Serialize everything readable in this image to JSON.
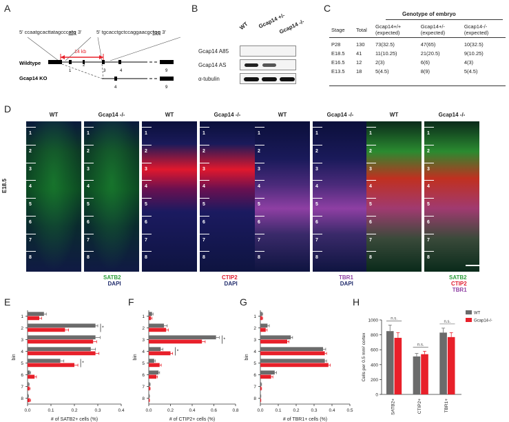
{
  "panels": {
    "A": "A",
    "B": "B",
    "C": "C",
    "D": "D",
    "E": "E",
    "F": "F",
    "G": "G",
    "H": "H"
  },
  "panelA": {
    "seq_left": "5' ccaatgcacttatagccc",
    "seq_left_ul": "atg",
    "seq_left_end": " 3'",
    "seq_right": "5' tgcacctgctccaggaacgc",
    "seq_right_ul": "tgg",
    "seq_right_end": " 3'",
    "kb": "14 kb",
    "wildtype": "Wildtype",
    "ko": "Gcap14 KO",
    "exons_wt": [
      "1",
      "2",
      "3",
      "4",
      "9"
    ],
    "exons_ko": [
      "4",
      "9"
    ]
  },
  "panelB": {
    "lanes": [
      "WT",
      "Gcap14 +/-",
      "Gcap14 -/-"
    ],
    "rows": [
      "Gcap14 A85",
      "Gcap14 AS",
      "α-tubulin"
    ]
  },
  "panelC": {
    "title": "Genotype of embryo",
    "headers": [
      "Stage",
      "Total",
      "Gcap14+/+\n(expected)",
      "Gcap14+/-\n(expected)",
      "Gcap14-/-\n(expected)"
    ],
    "rows": [
      [
        "P28",
        "130",
        "73(32.5)",
        "47(65)",
        "10(32.5)"
      ],
      [
        "E18.5",
        "41",
        "11(10.25)",
        "21(20.5)",
        "9(10.25)"
      ],
      [
        "E16.5",
        "12",
        "2(3)",
        "6(6)",
        "4(3)"
      ],
      [
        "E13.5",
        "18",
        "5(4.5)",
        "8(9)",
        "5(4.5)"
      ]
    ]
  },
  "panelD": {
    "stage": "E18.5",
    "wt": "WT",
    "ko": "Gcap14 -/-",
    "bins": [
      "1",
      "2",
      "3",
      "4",
      "5",
      "6",
      "7",
      "8"
    ],
    "captions": [
      [
        "SATB2",
        "DAPI"
      ],
      [
        "CTIP2",
        "DAPI"
      ],
      [
        "TBR1",
        "DAPI"
      ],
      [
        "SATB2",
        "CTIP2",
        "TBR1"
      ]
    ],
    "colors": {
      "satb2": "#2ecc40",
      "ctip2": "#e0182d",
      "tbr1": "#8e3fa3",
      "dapi": "#1f2a6b"
    }
  },
  "chart_data": [
    {
      "type": "bar",
      "orientation": "horizontal",
      "title": "",
      "xlabel": "# of SATB2+ cells (%)",
      "ylabel": "bin",
      "categories": [
        "1",
        "2",
        "3",
        "4",
        "5",
        "6",
        "7",
        "8"
      ],
      "xlim": [
        0,
        0.4
      ],
      "xticks": [
        "0.0",
        "0.1",
        "0.2",
        "0.3",
        "0.4"
      ],
      "series": [
        {
          "values": [
            0.07,
            0.29,
            0.29,
            0.27,
            0.14,
            0.01,
            0.005,
            0.003
          ],
          "errors": [
            0.01,
            0.01,
            0.02,
            0.02,
            0.015,
            0.003,
            0.002,
            0.001
          ],
          "color": "#6b6b6b"
        },
        {
          "values": [
            0.05,
            0.16,
            0.28,
            0.29,
            0.2,
            0.03,
            0.008,
            0.01
          ],
          "errors": [
            0.01,
            0.015,
            0.015,
            0.015,
            0.015,
            0.008,
            0.003,
            0.003
          ],
          "color": "#e8202a"
        }
      ],
      "sig_bins": [
        "2",
        "5"
      ]
    },
    {
      "type": "bar",
      "orientation": "horizontal",
      "title": "",
      "xlabel": "# of CTIP2+ cells (%)",
      "ylabel": "bin",
      "categories": [
        "1",
        "2",
        "3",
        "4",
        "5",
        "6",
        "7",
        "8"
      ],
      "xlim": [
        0,
        0.8
      ],
      "xticks": [
        "0.0",
        "0.2",
        "0.4",
        "0.6",
        "0.8"
      ],
      "series": [
        {
          "values": [
            0.03,
            0.14,
            0.62,
            0.11,
            0.05,
            0.09,
            0.01,
            0.005
          ],
          "errors": [
            0.01,
            0.03,
            0.03,
            0.02,
            0.01,
            0.01,
            0.003,
            0.002
          ],
          "color": "#6b6b6b"
        },
        {
          "values": [
            0.02,
            0.16,
            0.49,
            0.2,
            0.1,
            0.07,
            0.01,
            0.005
          ],
          "errors": [
            0.01,
            0.02,
            0.03,
            0.02,
            0.015,
            0.01,
            0.003,
            0.002
          ],
          "color": "#e8202a"
        }
      ],
      "sig_bins": [
        "3",
        "4"
      ]
    },
    {
      "type": "bar",
      "orientation": "horizontal",
      "title": "",
      "xlabel": "# of TBR1+ cells (%)",
      "ylabel": "bin",
      "categories": [
        "1",
        "2",
        "3",
        "4",
        "5",
        "6",
        "7",
        "8"
      ],
      "xlim": [
        0,
        0.5
      ],
      "xticks": [
        "0.0",
        "0.1",
        "0.2",
        "0.3",
        "0.4",
        "0.5"
      ],
      "series": [
        {
          "values": [
            0.01,
            0.04,
            0.17,
            0.35,
            0.36,
            0.08,
            0.005,
            0.002
          ],
          "errors": [
            0.003,
            0.01,
            0.01,
            0.015,
            0.01,
            0.01,
            0.002,
            0.001
          ],
          "color": "#6b6b6b"
        },
        {
          "values": [
            0.01,
            0.03,
            0.15,
            0.36,
            0.38,
            0.06,
            0.005,
            0.002
          ],
          "errors": [
            0.003,
            0.008,
            0.01,
            0.01,
            0.01,
            0.01,
            0.002,
            0.001
          ],
          "color": "#e8202a"
        }
      ],
      "sig_bins": []
    },
    {
      "type": "bar",
      "title": "",
      "xlabel": "",
      "ylabel": "Cells per 0.5 mm² cortex",
      "categories": [
        "SATB2+",
        "CTIP2+",
        "TBR1+"
      ],
      "ylim": [
        0,
        1000
      ],
      "yticks": [
        "0",
        "200",
        "400",
        "600",
        "800",
        "1000"
      ],
      "series": [
        {
          "name": "WT",
          "values": [
            850,
            510,
            830
          ],
          "errors": [
            80,
            40,
            60
          ],
          "color": "#6b6b6b"
        },
        {
          "name": "Gcap14-/-",
          "values": [
            760,
            540,
            770
          ],
          "errors": [
            70,
            40,
            60
          ],
          "color": "#e8202a"
        }
      ],
      "annotations": [
        "n.s.",
        "n.s.",
        "n.s."
      ]
    }
  ]
}
